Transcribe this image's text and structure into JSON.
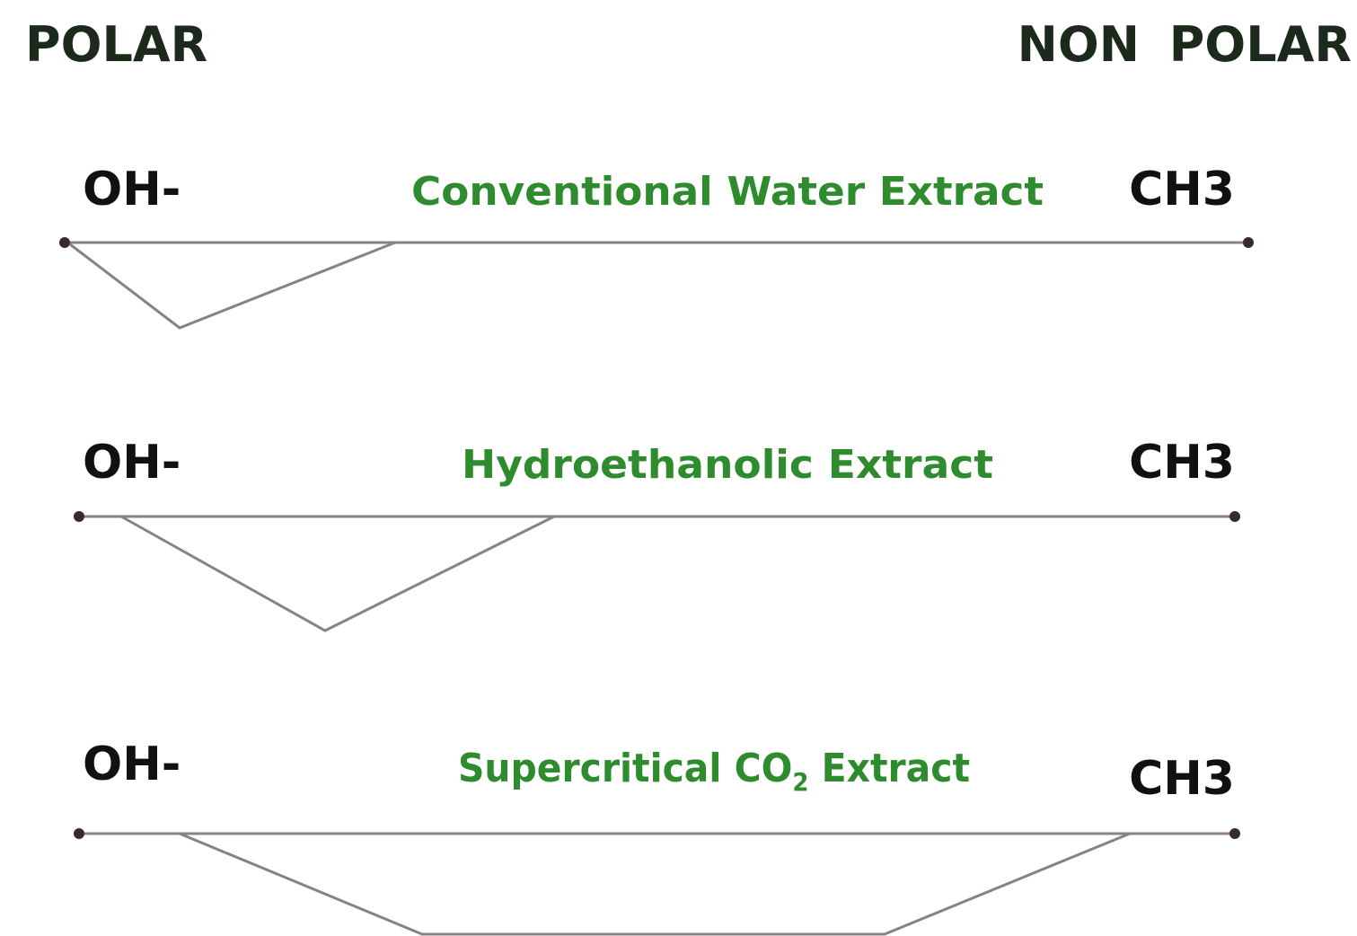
{
  "header": {
    "left": "POLAR",
    "right": "NON POLAR"
  },
  "rows": [
    {
      "left": "OH-",
      "label": "Conventional Water Extract",
      "right": "CH3"
    },
    {
      "left": "OH-",
      "label": "Hydroethanolic Extract",
      "right": "CH3"
    },
    {
      "left": "OH-",
      "label": {
        "text": "Supercritical CO",
        "subscript": "2",
        "suffix": " Extract"
      },
      "right": "CH3"
    }
  ]
}
